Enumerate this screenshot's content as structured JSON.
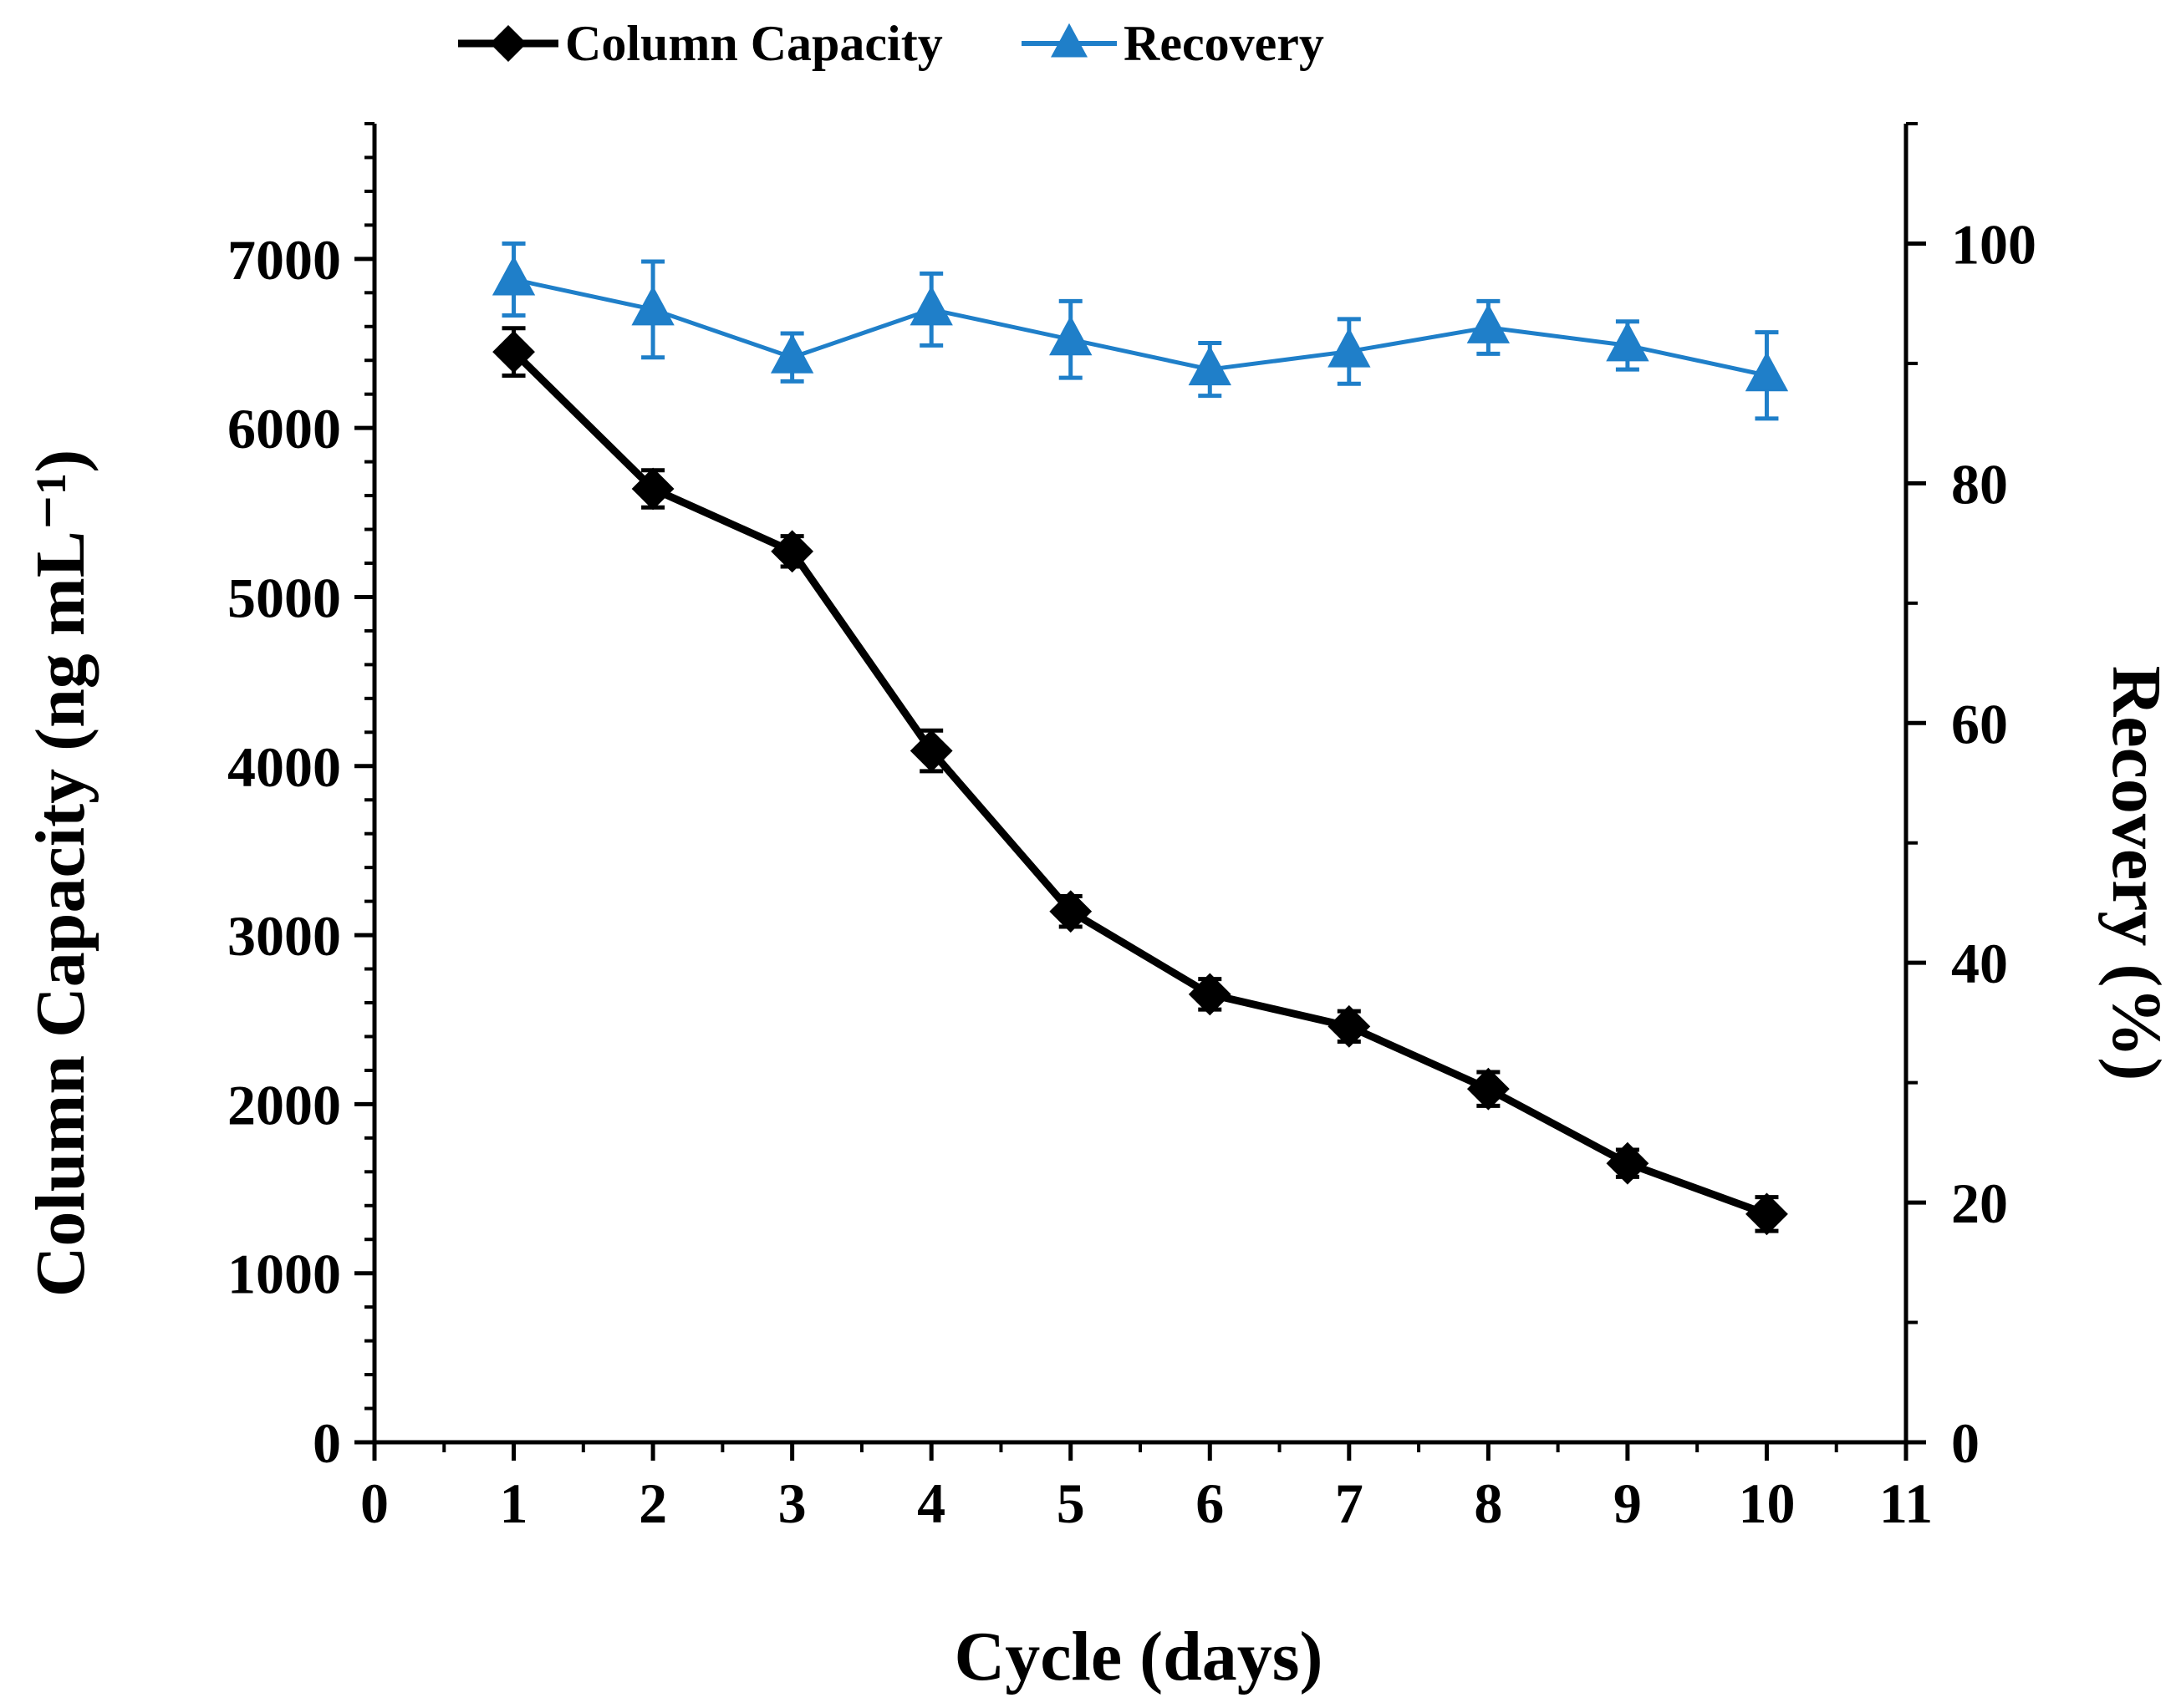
{
  "chart_data": {
    "type": "line",
    "xlabel": "Cycle (days)",
    "ylabel": "Column Capacity (ng mL⁻¹)",
    "y2label": "Recovery (%)",
    "xlim": [
      0,
      11
    ],
    "ylim": [
      0,
      7800
    ],
    "y2lim": [
      0,
      110
    ],
    "xticks": [
      0,
      1,
      2,
      3,
      4,
      5,
      6,
      7,
      8,
      9,
      10,
      11
    ],
    "yticks": [
      0,
      1000,
      2000,
      3000,
      4000,
      5000,
      6000,
      7000
    ],
    "y2ticks": [
      0,
      20,
      40,
      60,
      80,
      100
    ],
    "grid": false,
    "legend_position": "top-center",
    "x": [
      1,
      2,
      3,
      4,
      5,
      6,
      7,
      8,
      9,
      10
    ],
    "series": [
      {
        "name": "Column Capacity",
        "axis": "left",
        "marker": "diamond",
        "color": "#000000",
        "values": [
          6450,
          5640,
          5270,
          4090,
          3140,
          2650,
          2460,
          2090,
          1650,
          1350
        ],
        "errors": [
          140,
          110,
          90,
          120,
          90,
          90,
          90,
          100,
          80,
          100
        ]
      },
      {
        "name": "Recovery",
        "axis": "right",
        "marker": "triangle",
        "color": "#1f7fc9",
        "values": [
          97,
          94.5,
          90.5,
          94.5,
          92,
          89.5,
          91,
          93,
          91.5,
          89
        ],
        "errors": [
          3,
          4,
          2,
          3,
          3.2,
          2.2,
          2.7,
          2.2,
          2.0,
          3.6
        ]
      }
    ]
  }
}
